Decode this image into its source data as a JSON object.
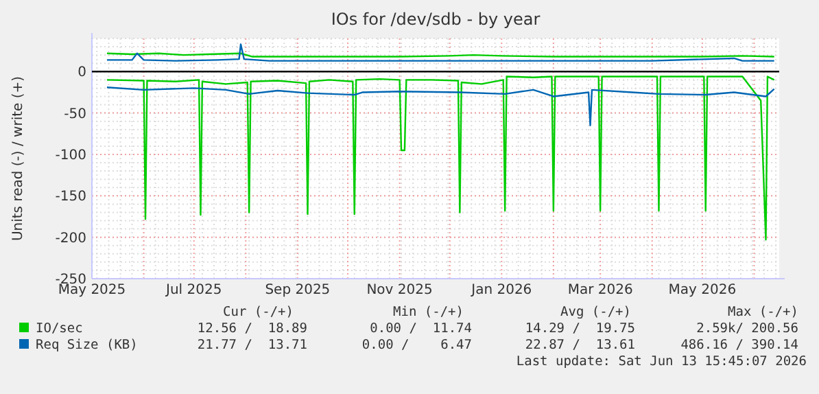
{
  "chart_data": {
    "type": "line",
    "title": "IOs for /dev/sdb - by year",
    "ylabel": "Units read (-) / write (+)",
    "xlim": [
      "2025-05-01",
      "2026-06-16"
    ],
    "ylim": [
      -250,
      40
    ],
    "xticks": [
      {
        "value": "2025-05",
        "label": "May 2025"
      },
      {
        "value": "2025-07",
        "label": "Jul 2025"
      },
      {
        "value": "2025-09",
        "label": "Sep 2025"
      },
      {
        "value": "2025-11",
        "label": "Nov 2025"
      },
      {
        "value": "2026-01",
        "label": "Jan 2026"
      },
      {
        "value": "2026-03",
        "label": "Mar 2026"
      },
      {
        "value": "2026-05",
        "label": "May 2026"
      }
    ],
    "yticks": [
      -250,
      -200,
      -150,
      -100,
      -50,
      0
    ],
    "grid": true,
    "legend": "bottom",
    "line_style": "solid",
    "ref_lines": [
      {
        "axis": "y",
        "value": 0,
        "color": "#000000"
      }
    ],
    "series": [
      {
        "name": "IO/sec",
        "color": "#00cc00",
        "x": [
          "2025-05-10",
          "2025-05-25",
          "2025-06-10",
          "2025-06-25",
          "2025-07-10",
          "2025-07-29",
          "2025-08-05",
          "2025-09-01",
          "2025-10-01",
          "2025-11-01",
          "2025-12-01",
          "2025-12-15",
          "2026-01-01",
          "2026-02-01",
          "2026-03-01",
          "2026-04-01",
          "2026-05-01",
          "2026-05-25",
          "2026-06-13"
        ],
        "values": [
          22,
          21,
          22,
          20,
          21,
          22,
          18,
          18,
          18,
          18,
          19,
          20,
          19,
          18,
          18,
          18,
          18,
          19,
          18
        ]
      },
      {
        "name": "Req Size (KB)",
        "color": "#0066b3",
        "x": [
          "2025-05-10",
          "2025-05-25",
          "2025-05-28",
          "2025-06-01",
          "2025-06-20",
          "2025-07-15",
          "2025-07-28",
          "2025-07-29",
          "2025-07-31",
          "2025-08-15",
          "2025-10-01",
          "2025-12-01",
          "2026-02-01",
          "2026-04-01",
          "2026-05-20",
          "2026-05-25",
          "2026-06-13"
        ],
        "values": [
          14,
          14,
          22,
          14,
          13,
          14,
          15,
          33,
          15,
          13,
          13,
          13,
          13,
          13,
          16,
          13,
          13
        ]
      },
      {
        "color": "#00cc00",
        "x": [
          "2025-05-10",
          "2025-06-01",
          "2025-06-02",
          "2025-06-03",
          "2025-06-20",
          "2025-07-04",
          "2025-07-05",
          "2025-07-06",
          "2025-07-20",
          "2025-08-02",
          "2025-08-03",
          "2025-08-04",
          "2025-08-20",
          "2025-09-06",
          "2025-09-07",
          "2025-09-08",
          "2025-09-20",
          "2025-10-04",
          "2025-10-05",
          "2025-10-06",
          "2025-10-20",
          "2025-11-01",
          "2025-11-02",
          "2025-11-04",
          "2025-11-05",
          "2025-11-20",
          "2025-12-06",
          "2025-12-07",
          "2025-12-08",
          "2025-12-20",
          "2026-01-02",
          "2026-01-03",
          "2026-01-04",
          "2026-01-20",
          "2026-01-31",
          "2026-02-01",
          "2026-02-02",
          "2026-02-20",
          "2026-02-28",
          "2026-03-01",
          "2026-03-02",
          "2026-03-20",
          "2026-04-04",
          "2026-04-05",
          "2026-04-06",
          "2026-04-20",
          "2026-05-02",
          "2026-05-03",
          "2026-05-04",
          "2026-05-25",
          "2026-06-05",
          "2026-06-08",
          "2026-06-09",
          "2026-06-13"
        ],
        "values": [
          -10,
          -11,
          -178,
          -11,
          -12,
          -10,
          -173,
          -12,
          -15,
          -13,
          -170,
          -12,
          -11,
          -14,
          -172,
          -12,
          -10,
          -12,
          -172,
          -10,
          -9,
          -10,
          -95,
          -95,
          -10,
          -10,
          -11,
          -170,
          -13,
          -15,
          -10,
          -168,
          -6,
          -7,
          -6,
          -168,
          -6,
          -6,
          -6,
          -168,
          -6,
          -6,
          -6,
          -168,
          -6,
          -6,
          -6,
          -168,
          -6,
          -6,
          -35,
          -203,
          -6,
          -10
        ]
      },
      {
        "color": "#0066b3",
        "x": [
          "2025-05-10",
          "2025-06-01",
          "2025-07-01",
          "2025-07-20",
          "2025-08-03",
          "2025-08-20",
          "2025-09-07",
          "2025-10-05",
          "2025-10-10",
          "2025-11-01",
          "2025-12-07",
          "2026-01-03",
          "2026-01-20",
          "2026-02-01",
          "2026-02-22",
          "2026-02-23",
          "2026-02-24",
          "2026-03-20",
          "2026-04-05",
          "2026-05-03",
          "2026-05-20",
          "2026-06-08",
          "2026-06-13"
        ],
        "values": [
          -19,
          -22,
          -20,
          -22,
          -27,
          -23,
          -26,
          -28,
          -25,
          -24,
          -25,
          -27,
          -22,
          -30,
          -25,
          -65,
          -22,
          -25,
          -27,
          -28,
          -25,
          -30,
          -21
        ]
      }
    ],
    "annotations": [
      "Cur (-/+)",
      "Min (-/+)",
      "Avg (-/+)",
      "Max (-/+)",
      "12.56 /  18.89",
      "0.00 /  11.74",
      "14.29 /  19.75",
      "2.59k/ 200.56",
      "21.77 /  13.71",
      "0.00 /    6.47",
      "22.87 /  13.61",
      "486.16 / 390.14",
      "Last update: Sat Jun 13 15:45:07 2026"
    ]
  }
}
